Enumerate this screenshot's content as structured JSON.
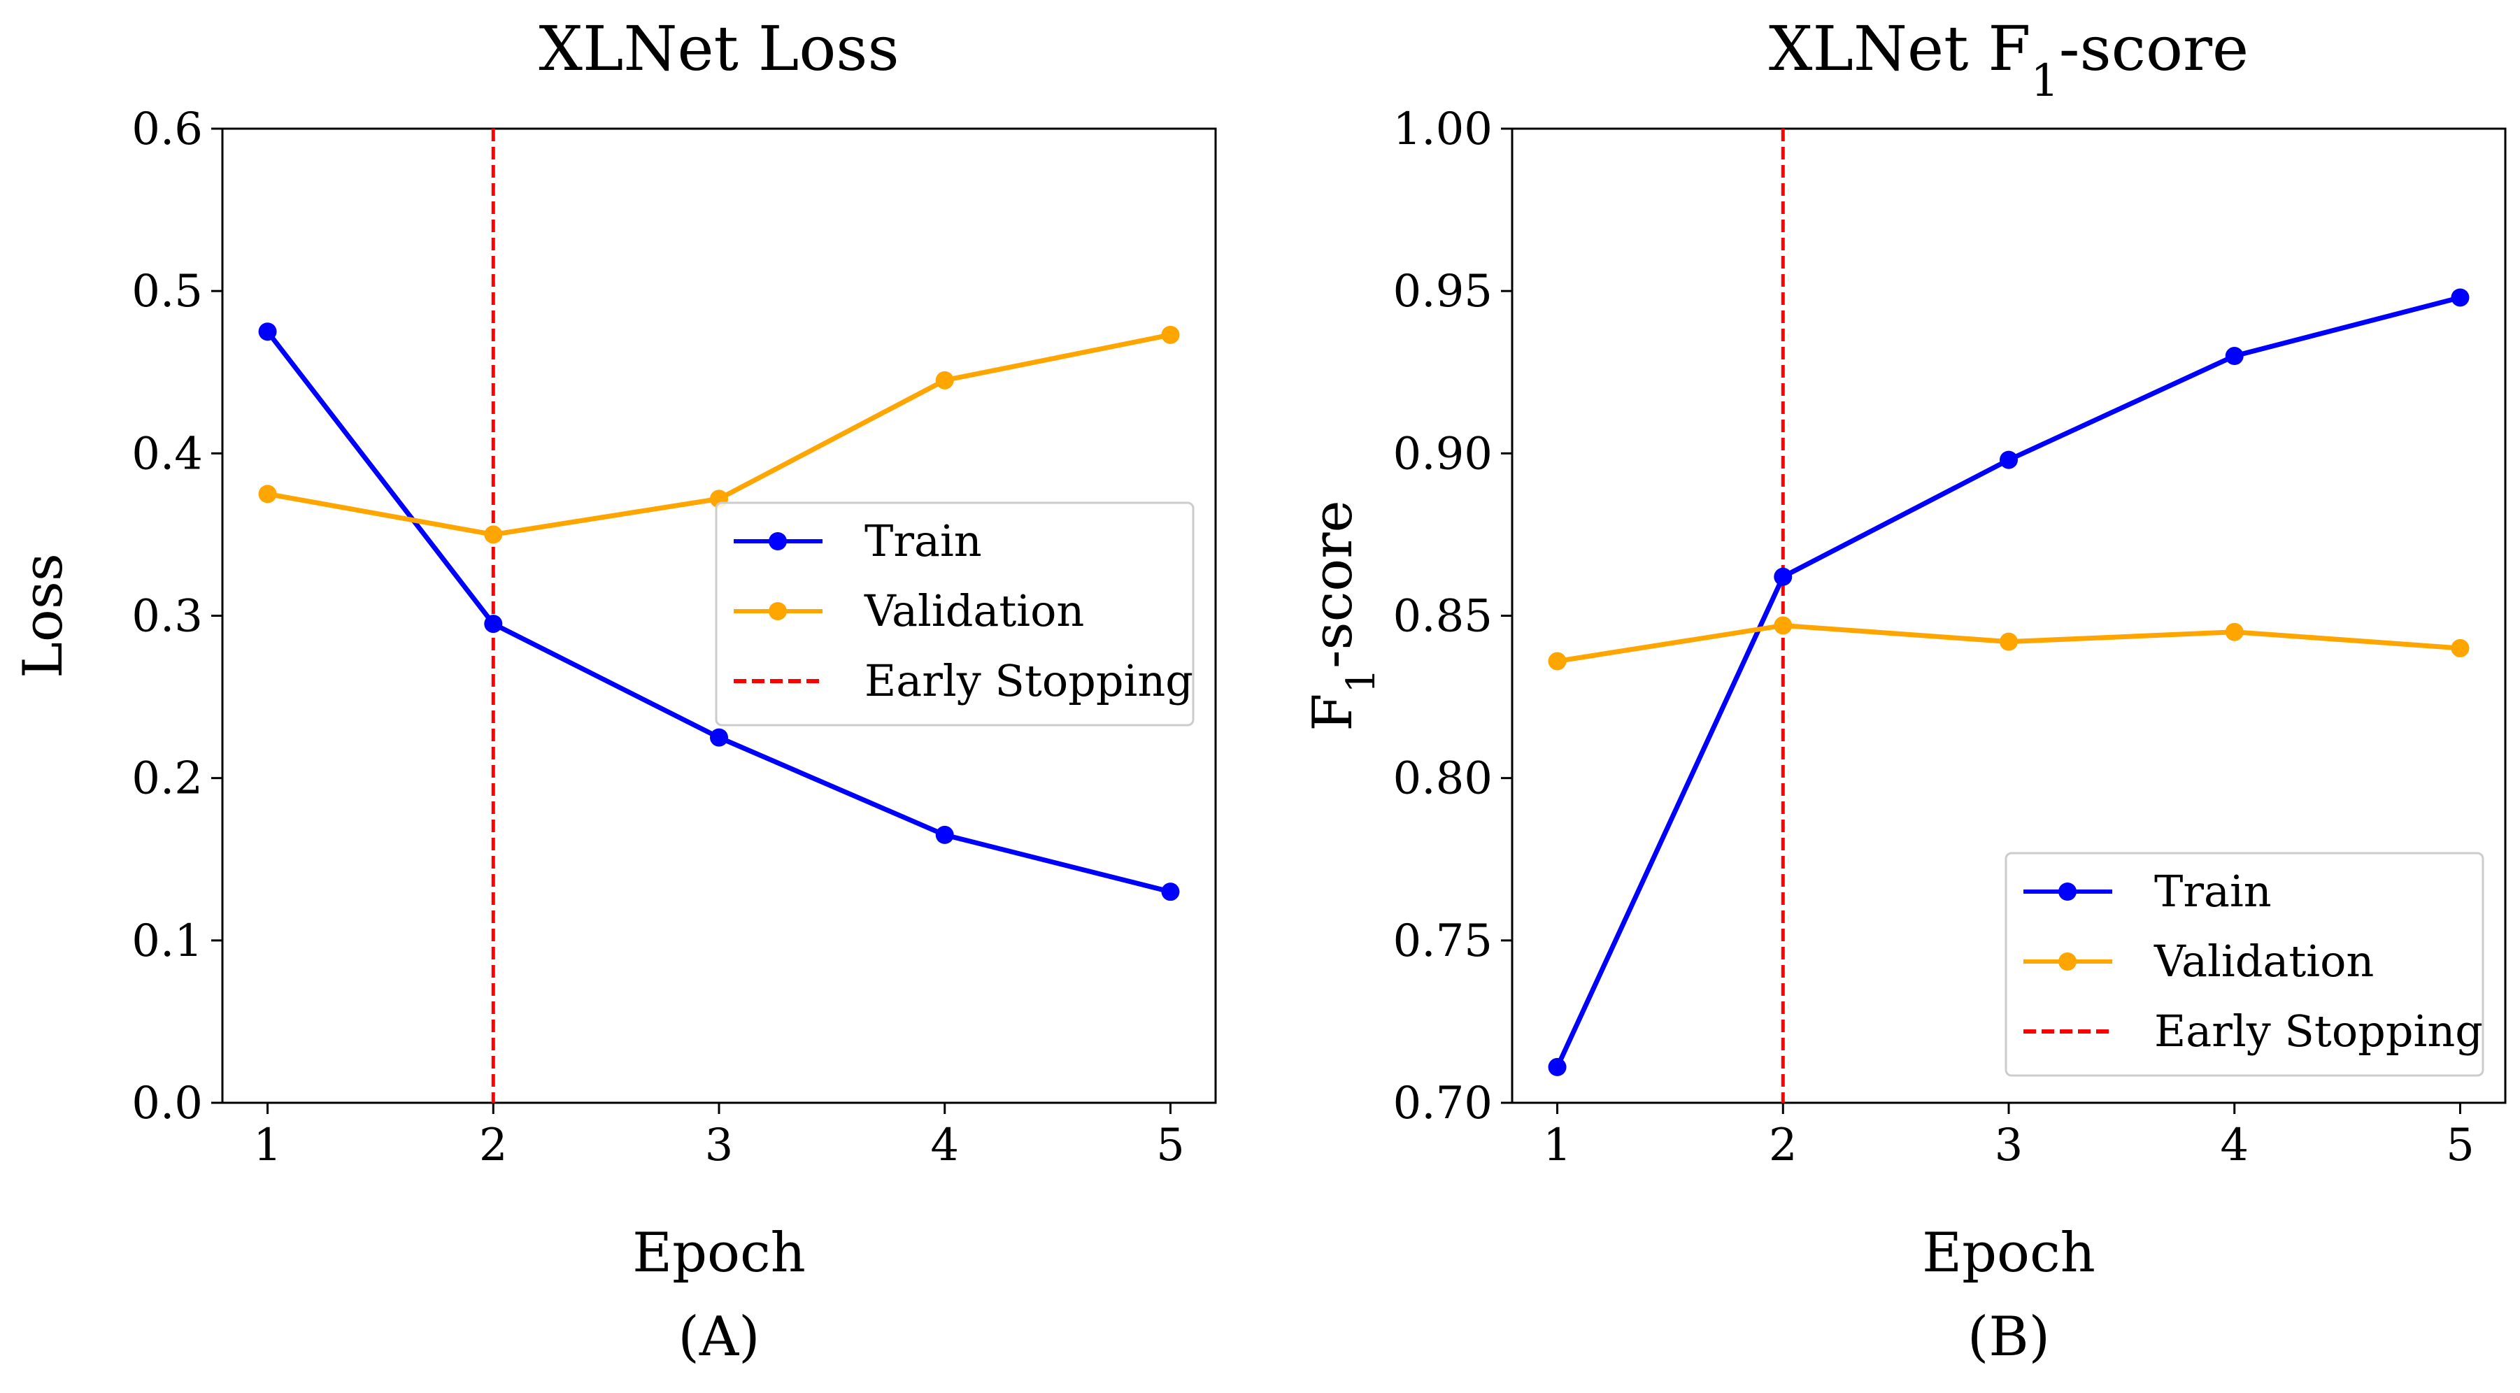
{
  "colors": {
    "train": "#0000ff",
    "validation": "#ffa500",
    "early_stopping": "#ff0000",
    "axis": "#000000",
    "legend_border": "#cccccc"
  },
  "chart_data": [
    {
      "type": "line",
      "panel": "(A)",
      "title": "XLNet Loss",
      "title_base": "XLNet Loss",
      "title_subscript": "",
      "title_suffix": "",
      "xlabel": "Epoch",
      "ylabel": "Loss",
      "ylabel_base": "Loss",
      "ylabel_subscript": "",
      "ylabel_suffix": "",
      "xlim": [
        0.8,
        5.2
      ],
      "ylim": [
        0.0,
        0.6
      ],
      "xticks": [
        1,
        2,
        3,
        4,
        5
      ],
      "xtick_labels": [
        "1",
        "2",
        "3",
        "4",
        "5"
      ],
      "yticks": [
        0.0,
        0.1,
        0.2,
        0.3,
        0.4,
        0.5,
        0.6
      ],
      "ytick_labels": [
        "0.0",
        "0.1",
        "0.2",
        "0.3",
        "0.4",
        "0.5",
        "0.6"
      ],
      "grid": false,
      "legend_position": "center-right",
      "x": [
        1,
        2,
        3,
        4,
        5
      ],
      "series": [
        {
          "name": "Train",
          "key": "train",
          "values": [
            0.475,
            0.295,
            0.225,
            0.165,
            0.13
          ]
        },
        {
          "name": "Validation",
          "key": "validation",
          "values": [
            0.375,
            0.35,
            0.372,
            0.445,
            0.473
          ]
        }
      ],
      "vline": {
        "name": "Early Stopping",
        "x": 2
      }
    },
    {
      "type": "line",
      "panel": "(B)",
      "title": "XLNet F1-score",
      "title_base": "XLNet F",
      "title_subscript": "1",
      "title_suffix": "-score",
      "xlabel": "Epoch",
      "ylabel": "F1-score",
      "ylabel_base": "F",
      "ylabel_subscript": "1",
      "ylabel_suffix": "-score",
      "xlim": [
        0.8,
        5.2
      ],
      "ylim": [
        0.7,
        1.0
      ],
      "xticks": [
        1,
        2,
        3,
        4,
        5
      ],
      "xtick_labels": [
        "1",
        "2",
        "3",
        "4",
        "5"
      ],
      "yticks": [
        0.7,
        0.75,
        0.8,
        0.85,
        0.9,
        0.95,
        1.0
      ],
      "ytick_labels": [
        "0.70",
        "0.75",
        "0.80",
        "0.85",
        "0.90",
        "0.95",
        "1.00"
      ],
      "grid": false,
      "legend_position": "lower-right",
      "x": [
        1,
        2,
        3,
        4,
        5
      ],
      "series": [
        {
          "name": "Train",
          "key": "train",
          "values": [
            0.711,
            0.862,
            0.898,
            0.93,
            0.948
          ]
        },
        {
          "name": "Validation",
          "key": "validation",
          "values": [
            0.836,
            0.847,
            0.842,
            0.845,
            0.84
          ]
        }
      ],
      "vline": {
        "name": "Early Stopping",
        "x": 2
      }
    }
  ]
}
